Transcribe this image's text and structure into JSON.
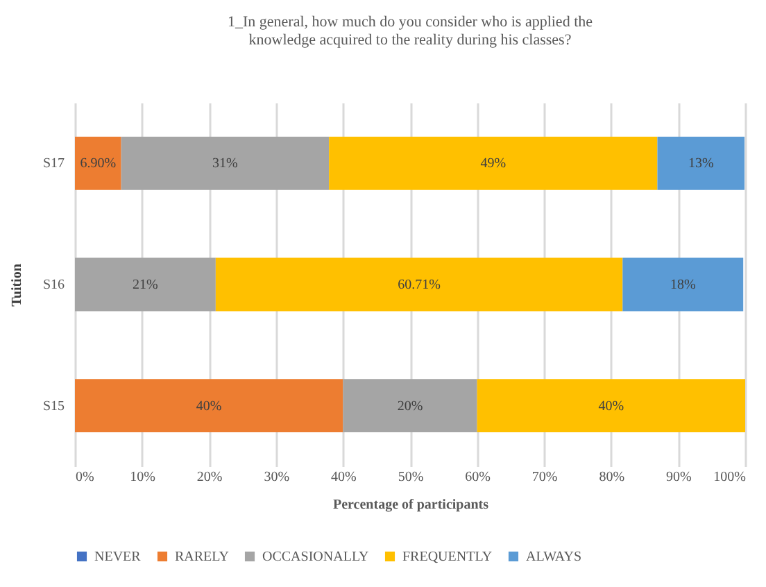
{
  "chart_data": {
    "type": "bar",
    "orientation": "horizontal",
    "stacked": true,
    "title": "1_In general, how much do you consider who is applied the knowledge acquired to the reality during his classes?",
    "xlabel": "Percentage of participants",
    "ylabel": "Tuition",
    "categories": [
      "S17",
      "S16",
      "S15"
    ],
    "series": [
      {
        "name": "NEVER",
        "color": "#4472c4",
        "values": [
          null,
          null,
          null
        ],
        "value_labels": [
          null,
          null,
          null
        ]
      },
      {
        "name": "RARELY",
        "color": "#ed7d31",
        "values": [
          6.9,
          null,
          40
        ],
        "value_labels": [
          "6.90%",
          null,
          "40%"
        ]
      },
      {
        "name": "OCCASIONALLY",
        "color": "#a5a5a5",
        "values": [
          31,
          21,
          20
        ],
        "value_labels": [
          "31%",
          "21%",
          "20%"
        ]
      },
      {
        "name": "FREQUENTLY",
        "color": "#ffc000",
        "values": [
          49,
          60.71,
          40
        ],
        "value_labels": [
          "49%",
          "60.71%",
          "40%"
        ]
      },
      {
        "name": "ALWAYS",
        "color": "#5b9bd5",
        "values": [
          13,
          18,
          null
        ],
        "value_labels": [
          "13%",
          "18%",
          null
        ]
      }
    ],
    "xlim": [
      0,
      100
    ],
    "xticks": [
      {
        "value": 0,
        "label": "0%"
      },
      {
        "value": 10,
        "label": "10%"
      },
      {
        "value": 20,
        "label": "20%"
      },
      {
        "value": 30,
        "label": "30%"
      },
      {
        "value": 40,
        "label": "40%"
      },
      {
        "value": 50,
        "label": "50%"
      },
      {
        "value": 60,
        "label": "60%"
      },
      {
        "value": 70,
        "label": "70%"
      },
      {
        "value": 80,
        "label": "80%"
      },
      {
        "value": 90,
        "label": "90%"
      },
      {
        "value": 100,
        "label": "100%"
      }
    ],
    "grid": "x",
    "legend": "bottom"
  }
}
